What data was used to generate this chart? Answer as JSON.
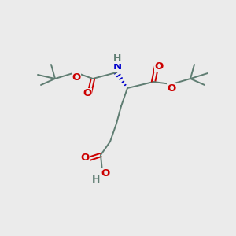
{
  "bg_color": "#ebebeb",
  "bond_color": "#5f7d72",
  "O_color": "#cc0000",
  "N_color": "#0000cc",
  "H_color": "#5f7d72",
  "font_size": 9.5,
  "bold_atoms": [
    "N",
    "O",
    "H"
  ],
  "line_width": 1.4
}
